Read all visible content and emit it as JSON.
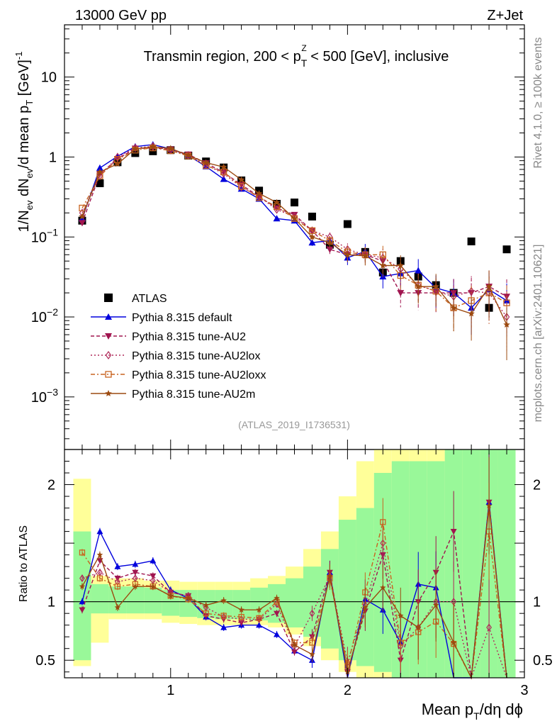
{
  "header": {
    "left": "13000 GeV pp",
    "right": "Z+Jet"
  },
  "side_labels": {
    "rivet": "Rivet 4.1.0, ≥ 100k events",
    "mcplots": "mcplots.cern.ch [arXiv:2401.10621]"
  },
  "chart_data": [
    {
      "type": "scatter",
      "panel": "main",
      "title_parts": [
        "Transmin region, 200 < p",
        "T",
        "Z",
        " < 500 [GeV], inclusive"
      ],
      "analysis_label": "(ATLAS_2019_I1736531)",
      "ylabel_parts": [
        "1/N",
        "ev",
        " dN",
        "ev",
        "/d mean p",
        "T",
        " [GeV]",
        "-1"
      ],
      "yscale": "log",
      "ylim": [
        0.00022,
        45
      ],
      "xlim": [
        0.4,
        3.0
      ],
      "y_tick_labels": [
        {
          "value": 0.001,
          "base": "10",
          "exp": "−3"
        },
        {
          "value": 0.01,
          "base": "10",
          "exp": "−2"
        },
        {
          "value": 0.1,
          "base": "10",
          "exp": "−1"
        },
        {
          "value": 1,
          "base": "1",
          "exp": ""
        },
        {
          "value": 10,
          "base": "10",
          "exp": ""
        }
      ],
      "x": [
        0.5,
        0.6,
        0.7,
        0.8,
        0.9,
        1.0,
        1.1,
        1.2,
        1.3,
        1.4,
        1.5,
        1.6,
        1.7,
        1.8,
        1.9,
        2.0,
        2.1,
        2.2,
        2.3,
        2.4,
        2.5,
        2.6,
        2.7,
        2.8,
        2.9
      ],
      "series": [
        {
          "name": "ATLAS",
          "key": "atlas",
          "color": "#000000",
          "marker": "square",
          "dash": "",
          "values": [
            0.16,
            0.47,
            0.86,
            1.12,
            1.18,
            1.22,
            1.04,
            0.88,
            0.74,
            0.51,
            0.38,
            0.26,
            0.27,
            0.18,
            0.08,
            0.145,
            0.065,
            0.036,
            0.05,
            0.032,
            0.025,
            0.02,
            0.088,
            0.013,
            0.07
          ]
        },
        {
          "name": "Pythia 8.315 default",
          "key": "default",
          "color": "#0000dd",
          "marker": "triangle-up",
          "dash": "",
          "values": [
            0.17,
            0.73,
            1.02,
            1.35,
            1.43,
            1.26,
            1.05,
            0.76,
            0.53,
            0.4,
            0.3,
            0.17,
            0.16,
            0.085,
            0.09,
            0.055,
            0.066,
            0.032,
            0.035,
            0.038,
            0.023,
            0.02,
            0.013,
            0.022,
            0.016
          ]
        },
        {
          "name": "Pythia 8.315 tune-AU2",
          "key": "au2",
          "color": "#a0154f",
          "marker": "triangle-down",
          "dash": "5,3",
          "values": [
            0.15,
            0.61,
            0.95,
            1.28,
            1.3,
            1.25,
            1.08,
            0.84,
            0.64,
            0.45,
            0.32,
            0.23,
            0.19,
            0.12,
            0.07,
            0.06,
            0.06,
            0.05,
            0.02,
            0.02,
            0.02,
            0.02,
            0.02,
            0.024,
            0.018
          ]
        },
        {
          "name": "Pythia 8.315 tune-AU2lox",
          "key": "au2lox",
          "color": "#b02a5a",
          "marker": "diamond",
          "dash": "2,3",
          "values": [
            0.2,
            0.58,
            1.0,
            1.3,
            1.36,
            1.22,
            1.05,
            0.8,
            0.62,
            0.42,
            0.32,
            0.22,
            0.18,
            0.12,
            0.1,
            0.07,
            0.06,
            0.055,
            0.04,
            0.025,
            0.021,
            0.018,
            0.021,
            0.02,
            0.01
          ]
        },
        {
          "name": "Pythia 8.315 tune-AU2loxx",
          "key": "au2loxx",
          "color": "#c86420",
          "marker": "square-open",
          "dash": "6,3,2,3",
          "values": [
            0.23,
            0.58,
            0.93,
            1.22,
            1.3,
            1.2,
            1.03,
            0.78,
            0.65,
            0.43,
            0.31,
            0.24,
            0.17,
            0.12,
            0.09,
            0.065,
            0.06,
            0.06,
            0.033,
            0.025,
            0.021,
            0.013,
            0.016,
            0.02,
            0.015
          ]
        },
        {
          "name": "Pythia 8.315 tune-AU2m",
          "key": "au2m",
          "color": "#9c4a10",
          "marker": "star",
          "dash": "",
          "values": [
            0.18,
            0.65,
            0.82,
            1.26,
            1.34,
            1.28,
            1.05,
            0.85,
            0.75,
            0.52,
            0.35,
            0.27,
            0.17,
            0.1,
            0.085,
            0.06,
            0.058,
            0.044,
            0.044,
            0.024,
            0.024,
            0.013,
            0.011,
            0.024,
            0.008
          ]
        }
      ],
      "legend": {
        "placement": "lower-left"
      }
    },
    {
      "type": "line",
      "panel": "ratio",
      "ylabel": "Ratio to ATLAS",
      "xlabel_parts": [
        "Mean p",
        "T",
        "/dη dϕ"
      ],
      "ylim": [
        0.35,
        2.3
      ],
      "xlim": [
        0.4,
        3.0
      ],
      "reference": 1.0,
      "y_tick_labels": [
        {
          "value": 0.5,
          "label": "0.5"
        },
        {
          "value": 1,
          "label": "1"
        },
        {
          "value": 2,
          "label": "2"
        }
      ],
      "x_tick_labels": [
        {
          "value": 1,
          "label": "1"
        },
        {
          "value": 2,
          "label": "2"
        },
        {
          "value": 3,
          "label": "3"
        }
      ],
      "bands": {
        "inner_color": "#99f899",
        "outer_color": "#ffff99",
        "edges": [
          0.45,
          0.55,
          0.65,
          0.75,
          0.85,
          0.95,
          1.05,
          1.15,
          1.25,
          1.35,
          1.45,
          1.55,
          1.65,
          1.75,
          1.85,
          1.95,
          2.05,
          2.15,
          2.25,
          2.35,
          2.45,
          2.55,
          2.65,
          2.75,
          2.85,
          2.95
        ],
        "inner": [
          [
            0.5,
            1.6
          ],
          [
            0.9,
            1.15
          ],
          [
            0.9,
            1.13
          ],
          [
            0.9,
            1.13
          ],
          [
            0.9,
            1.12
          ],
          [
            0.88,
            1.1
          ],
          [
            0.87,
            1.1
          ],
          [
            0.86,
            1.1
          ],
          [
            0.85,
            1.1
          ],
          [
            0.85,
            1.1
          ],
          [
            0.84,
            1.12
          ],
          [
            0.82,
            1.15
          ],
          [
            0.78,
            1.2
          ],
          [
            0.7,
            1.3
          ],
          [
            0.6,
            1.45
          ],
          [
            0.5,
            1.7
          ],
          [
            0.45,
            1.8
          ],
          [
            0.4,
            2.1
          ],
          [
            0.35,
            2.2
          ],
          [
            0.35,
            2.2
          ],
          [
            0.35,
            2.2
          ],
          [
            0.35,
            2.3
          ],
          [
            0.35,
            2.3
          ],
          [
            0.35,
            2.3
          ],
          [
            0.35,
            2.3
          ]
        ],
        "outer": [
          [
            0.45,
            2.05
          ],
          [
            0.65,
            1.22
          ],
          [
            0.85,
            1.2
          ],
          [
            0.85,
            1.2
          ],
          [
            0.85,
            1.18
          ],
          [
            0.82,
            1.18
          ],
          [
            0.81,
            1.17
          ],
          [
            0.8,
            1.17
          ],
          [
            0.8,
            1.17
          ],
          [
            0.8,
            1.17
          ],
          [
            0.8,
            1.2
          ],
          [
            0.78,
            1.22
          ],
          [
            0.72,
            1.3
          ],
          [
            0.62,
            1.45
          ],
          [
            0.5,
            1.6
          ],
          [
            0.4,
            1.9
          ],
          [
            0.35,
            2.2
          ],
          [
            0.35,
            2.3
          ],
          [
            0.35,
            2.3
          ],
          [
            0.35,
            2.3
          ],
          [
            0.35,
            2.3
          ],
          [
            0.35,
            2.3
          ],
          [
            0.35,
            2.3
          ],
          [
            0.35,
            2.3
          ],
          [
            0.35,
            2.3
          ]
        ]
      },
      "series": [
        {
          "key": "default",
          "values": [
            1.0,
            1.6,
            1.3,
            1.32,
            1.35,
            1.1,
            1.03,
            0.87,
            0.78,
            0.8,
            0.8,
            0.72,
            0.58,
            0.5,
            1.25,
            0.3,
            1.02,
            0.93,
            0.65,
            1.15,
            1.12,
            0.3,
            0.3,
            1.85,
            0.3
          ]
        },
        {
          "key": "au2",
          "values": [
            0.93,
            1.35,
            1.2,
            1.25,
            1.22,
            1.08,
            1.05,
            0.88,
            0.85,
            0.82,
            0.85,
            0.9,
            0.57,
            0.7,
            1.25,
            0.4,
            0.92,
            1.4,
            0.5,
            1.0,
            1.25,
            1.6,
            0.3,
            1.85,
            0.3
          ]
        },
        {
          "key": "au2lox",
          "values": [
            1.2,
            1.25,
            1.17,
            1.2,
            1.18,
            1.08,
            1.05,
            0.95,
            0.87,
            0.85,
            0.85,
            0.98,
            0.62,
            0.9,
            1.22,
            0.48,
            0.97,
            1.5,
            0.62,
            0.78,
            1.0,
            1.0,
            0.3,
            0.78,
            0.3
          ]
        },
        {
          "key": "au2loxx",
          "values": [
            1.42,
            1.2,
            1.13,
            1.15,
            1.13,
            1.05,
            1.02,
            0.9,
            0.88,
            0.87,
            0.86,
            1.0,
            0.65,
            0.65,
            1.2,
            0.45,
            1.08,
            1.68,
            0.65,
            0.74,
            0.83,
            0.64,
            0.3,
            1.6,
            0.3
          ]
        },
        {
          "key": "au2m",
          "values": [
            1.13,
            1.4,
            0.95,
            1.13,
            1.13,
            1.05,
            1.03,
            0.97,
            1.01,
            0.93,
            0.93,
            1.03,
            0.63,
            0.55,
            1.22,
            0.4,
            0.95,
            1.12,
            0.88,
            0.78,
            0.97,
            0.65,
            0.3,
            1.82,
            0.3
          ]
        }
      ]
    }
  ]
}
